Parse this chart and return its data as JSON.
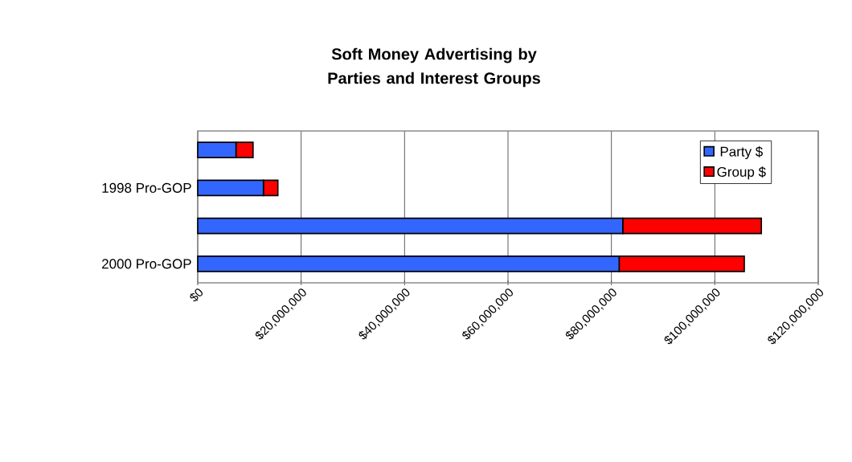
{
  "chart_data": {
    "type": "bar",
    "title": "Soft Money Advertising by Parties and Interest Groups",
    "orientation": "horizontal",
    "stacked": true,
    "categories": [
      null,
      "1998 Pro-GOP",
      null,
      "2000 Pro-GOP"
    ],
    "series": [
      {
        "name": "Party $",
        "color": "#3366ff",
        "values": [
          7400000,
          12700000,
          82200000,
          81500000
        ]
      },
      {
        "name": "Group $",
        "color": "#ff0000",
        "values": [
          3300000,
          2800000,
          26800000,
          24200000
        ]
      }
    ],
    "xlim": [
      0,
      120000000
    ],
    "xticks": [
      {
        "value": 0,
        "label": "$0"
      },
      {
        "value": 20000000,
        "label": "$20,000,000"
      },
      {
        "value": 40000000,
        "label": "$40,000,000"
      },
      {
        "value": 60000000,
        "label": "$60,000,000"
      },
      {
        "value": 80000000,
        "label": "$80,000,000"
      },
      {
        "value": 100000000,
        "label": "$100,000,000"
      },
      {
        "value": 120000000,
        "label": "$120,000,000"
      }
    ],
    "grid": "x",
    "legend": "top right"
  }
}
